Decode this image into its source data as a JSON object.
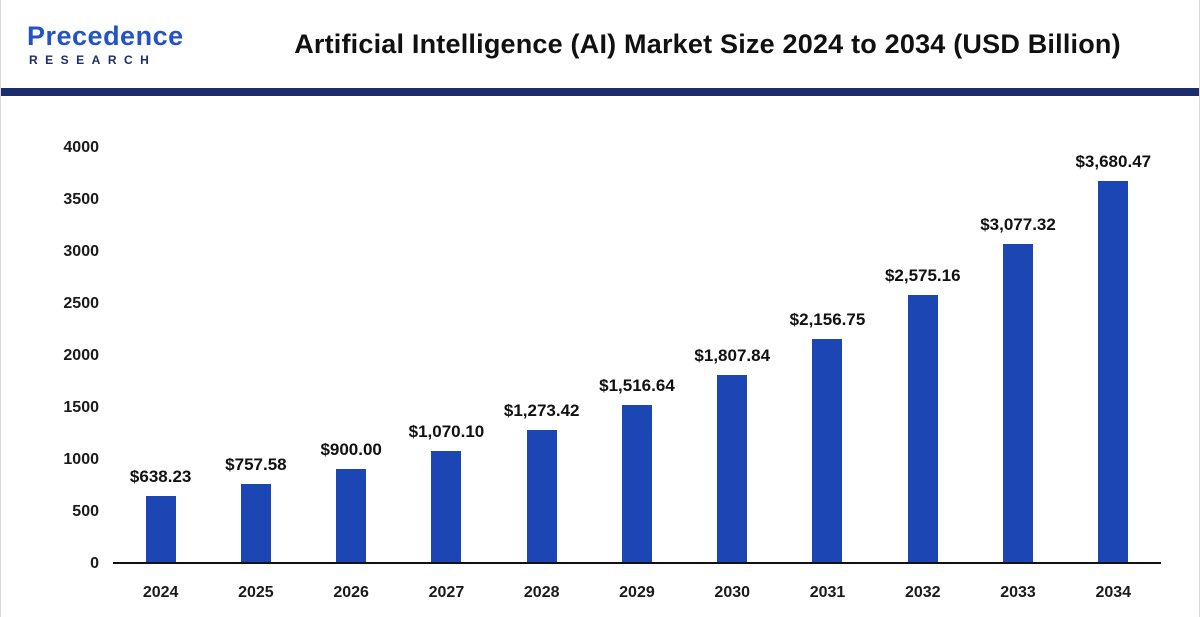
{
  "header": {
    "logo": {
      "name": "Precedence",
      "subtitle": "RESEARCH"
    },
    "title": "Artificial Intelligence (AI) Market Size 2024 to 2034 (USD Billion)"
  },
  "colors": {
    "bar": "#1c46b4",
    "divider": "#1b2d6b",
    "logo_primary": "#2453c4",
    "logo_secondary": "#1b2d6b",
    "text": "#111111"
  },
  "chart_data": {
    "type": "bar",
    "title": "Artificial Intelligence (AI) Market Size 2024 to 2034 (USD Billion)",
    "categories": [
      "2024",
      "2025",
      "2026",
      "2027",
      "2028",
      "2029",
      "2030",
      "2031",
      "2032",
      "2033",
      "2034"
    ],
    "values": [
      638.23,
      757.58,
      900.0,
      1070.1,
      1273.42,
      1516.64,
      1807.84,
      2156.75,
      2575.16,
      3077.32,
      3680.47
    ],
    "value_labels": [
      "$638.23",
      "$757.58",
      "$900.00",
      "$1,070.10",
      "$1,273.42",
      "$1,516.64",
      "$1,807.84",
      "$2,156.75",
      "$2,575.16",
      "$3,077.32",
      "$3,680.47"
    ],
    "xlabel": "",
    "ylabel": "",
    "ylim": [
      0,
      4000
    ],
    "yticks": [
      0,
      500,
      1000,
      1500,
      2000,
      2500,
      3000,
      3500,
      4000
    ],
    "grid": false,
    "legend": "none",
    "bar_color": "#1c46b4"
  }
}
